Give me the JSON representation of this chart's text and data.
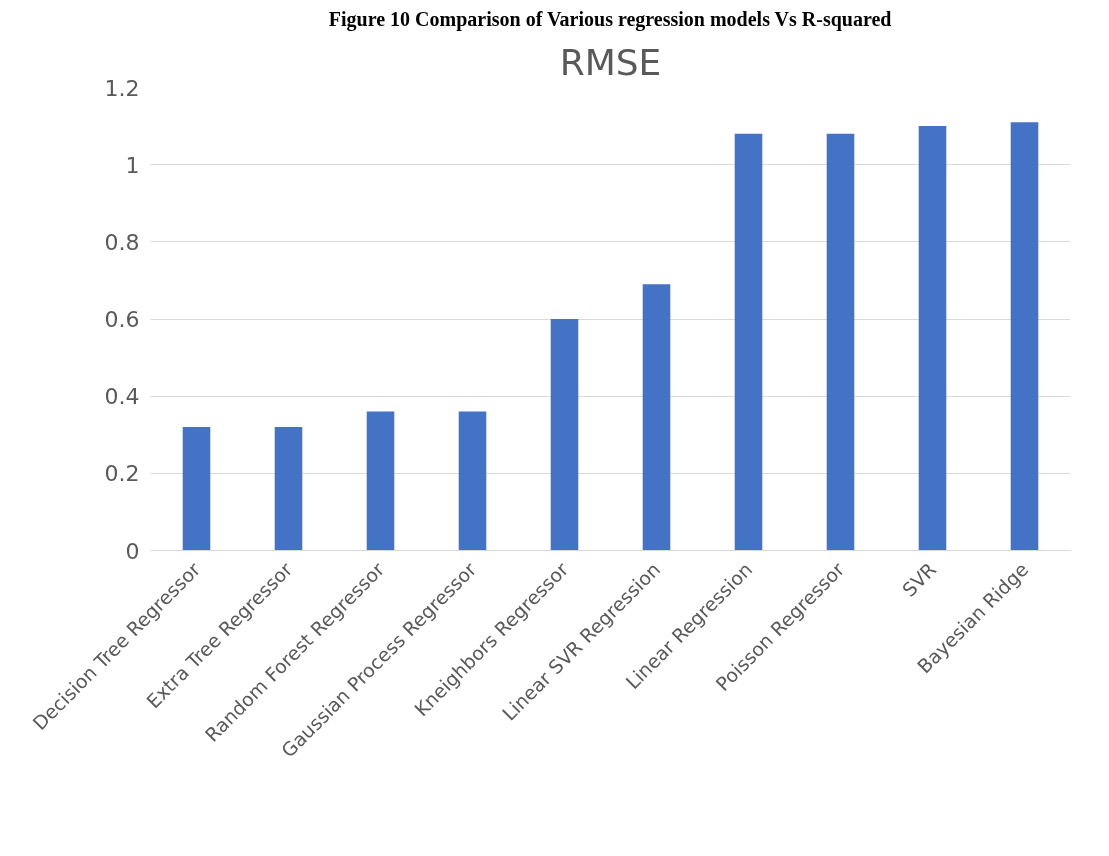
{
  "chart_data": {
    "type": "bar",
    "title": "RMSE",
    "annotations": [
      "Figure 10 Comparison of Various regression models Vs R-squared"
    ],
    "categories": [
      "Decision Tree Regressor",
      "Extra Tree Regressor",
      "Random Forest Regressor",
      "Gaussian Process Regressor",
      "Kneighbors Regressor",
      "Linear SVR Regression",
      "Linear Regression",
      "Poisson Regressor",
      "SVR",
      "Bayesian Ridge"
    ],
    "values": [
      0.32,
      0.32,
      0.36,
      0.36,
      0.6,
      0.69,
      1.08,
      1.08,
      1.1,
      1.11
    ],
    "color": "#4472c4",
    "ylim": [
      0,
      1.2
    ],
    "yticks": [
      0,
      0.2,
      0.4,
      0.6,
      0.8,
      1,
      1.2
    ],
    "grid": "y"
  }
}
